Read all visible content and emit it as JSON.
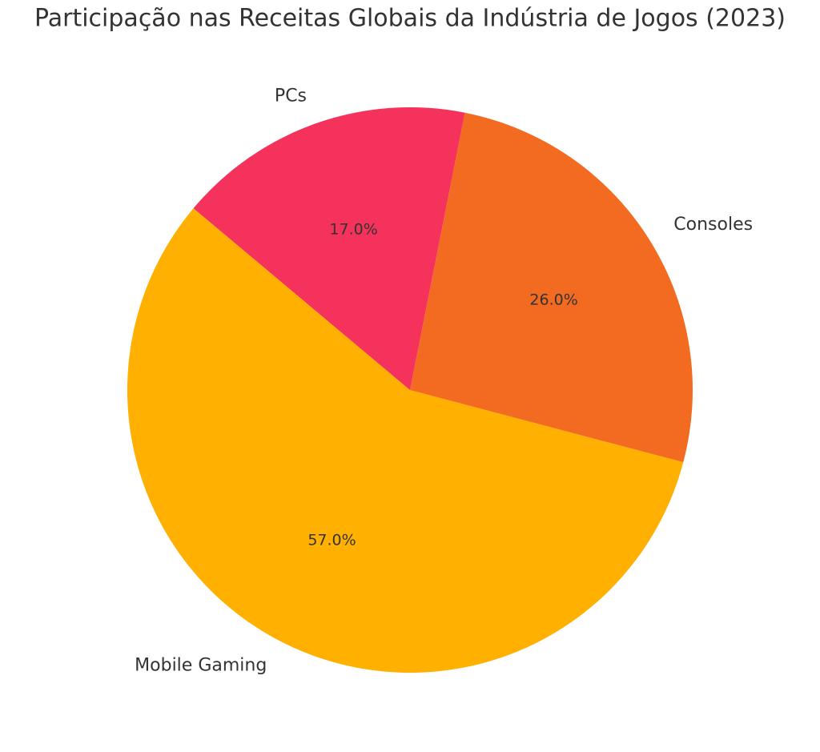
{
  "chart_data": {
    "type": "pie",
    "title": "Participação nas Receitas Globais da Indústria de Jogos (2023)",
    "categories": [
      "Mobile Gaming",
      "Consoles",
      "PCs"
    ],
    "values": [
      57,
      26,
      17
    ],
    "value_labels": [
      "57.0%",
      "26.0%",
      "17.0%"
    ],
    "colors": [
      "#FFB000",
      "#F26B21",
      "#F5325B"
    ]
  }
}
